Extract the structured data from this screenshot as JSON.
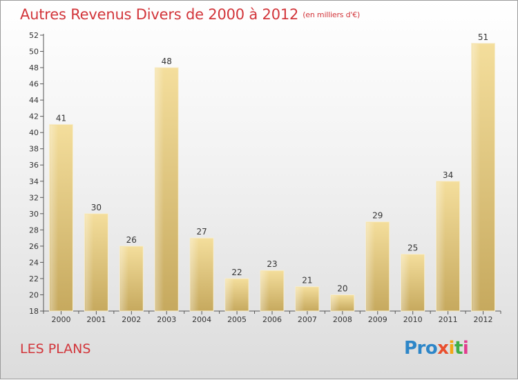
{
  "header": {
    "title": "Autres Revenus Divers de 2000 à 2012",
    "unit": "(en milliers d'€)"
  },
  "footer": {
    "commune": "LES PLANS",
    "logo_parts": [
      "Pro",
      "x",
      "i",
      "t",
      "i"
    ]
  },
  "colors": {
    "title": "#d2353a",
    "bar_light": "#f3dc98",
    "bar_dark": "#c8ac62"
  },
  "chart_data": {
    "type": "bar",
    "title": "Autres Revenus Divers de 2000 à 2012",
    "subtitle": "(en milliers d'€)",
    "categories": [
      "2000",
      "2001",
      "2002",
      "2003",
      "2004",
      "2005",
      "2006",
      "2007",
      "2008",
      "2009",
      "2010",
      "2011",
      "2012"
    ],
    "values": [
      41,
      30,
      26,
      48,
      27,
      22,
      23,
      21,
      20,
      29,
      25,
      34,
      51
    ],
    "ylim": [
      18,
      52
    ],
    "yticks": [
      18,
      20,
      22,
      24,
      26,
      28,
      30,
      32,
      34,
      36,
      38,
      40,
      42,
      44,
      46,
      48,
      50,
      52
    ],
    "grid": false,
    "legend": "none"
  }
}
